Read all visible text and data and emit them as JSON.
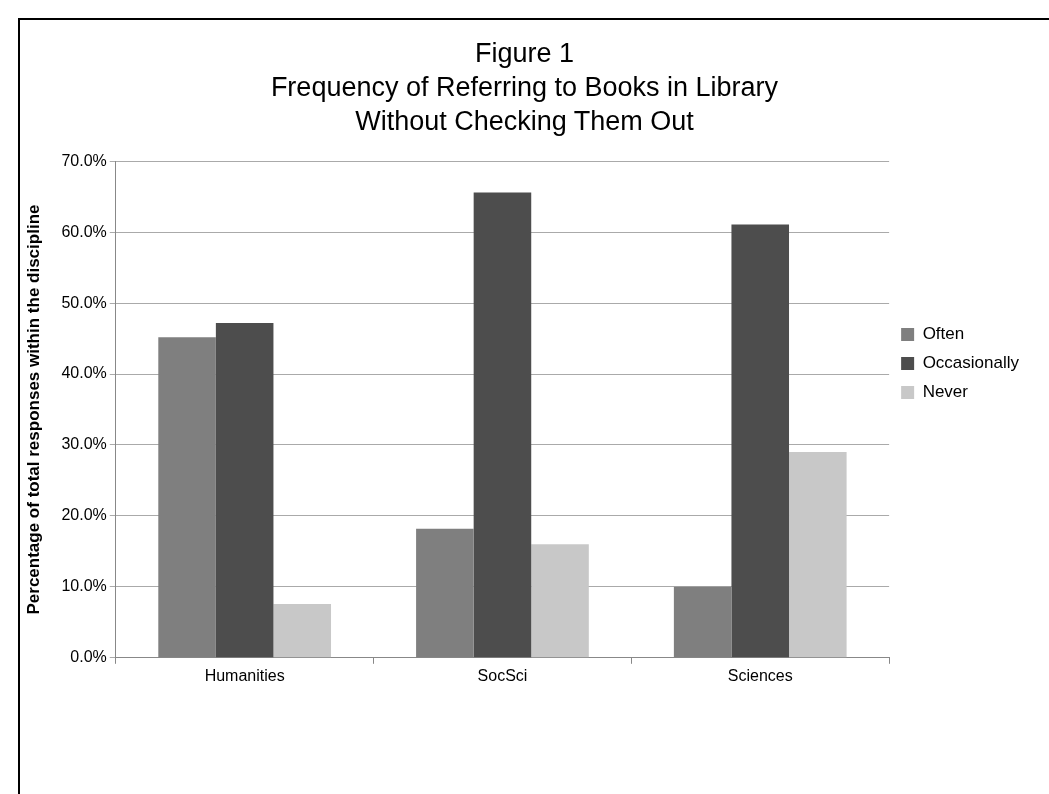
{
  "chart_data": {
    "type": "bar",
    "title": "Figure 1\nFrequency of Referring to Books in Library\nWithout Checking Them Out",
    "ylabel": "Percentage of total responses within the discipline",
    "categories": [
      "Humanities",
      "SocSci",
      "Sciences"
    ],
    "series": [
      {
        "name": "Often",
        "color": "#7f7f7f",
        "values": [
          45.2,
          18.2,
          10.0
        ]
      },
      {
        "name": "Occasionally",
        "color": "#4d4d4d",
        "values": [
          47.2,
          65.6,
          61.1
        ]
      },
      {
        "name": "Never",
        "color": "#c8c8c8",
        "values": [
          7.6,
          16.0,
          29.0
        ]
      }
    ],
    "ylim": [
      0,
      70
    ],
    "yticks": [
      {
        "value": 0,
        "label": "0.0%"
      },
      {
        "value": 10,
        "label": "10.0%"
      },
      {
        "value": 20,
        "label": "20.0%"
      },
      {
        "value": 30,
        "label": "30.0%"
      },
      {
        "value": 40,
        "label": "40.0%"
      },
      {
        "value": 50,
        "label": "50.0%"
      },
      {
        "value": 60,
        "label": "60.0%"
      },
      {
        "value": 70,
        "label": "70.0%"
      }
    ],
    "grid": "y",
    "legend": "right"
  }
}
